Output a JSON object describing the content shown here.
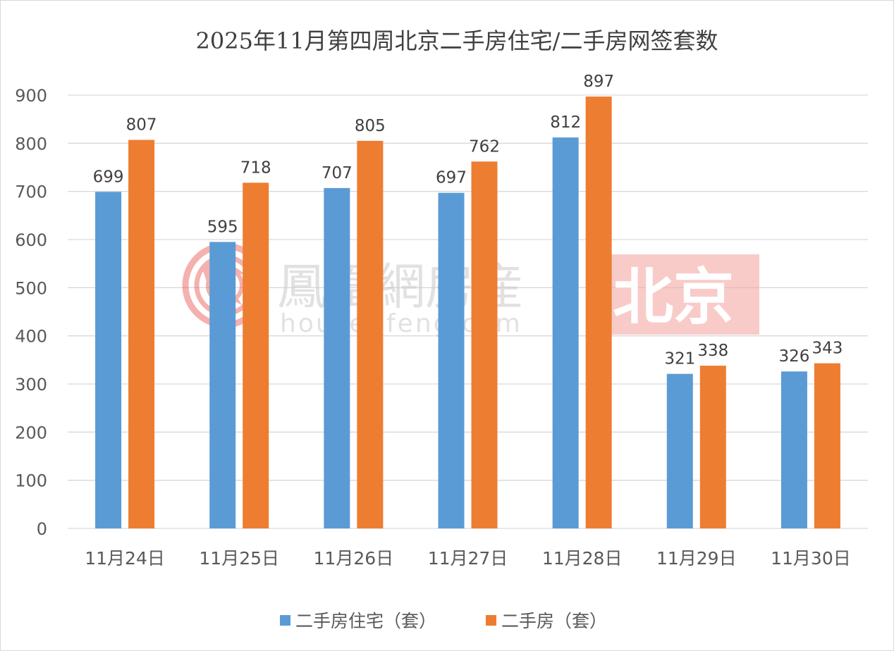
{
  "chart_data": {
    "type": "bar",
    "title": "2025年11月第四周北京二手房住宅/二手房网签套数",
    "categories": [
      "11月24日",
      "11月25日",
      "11月26日",
      "11月27日",
      "11月28日",
      "11月29日",
      "11月30日"
    ],
    "series": [
      {
        "name": "二手房住宅（套）",
        "color": "#5b9bd5",
        "values": [
          699,
          595,
          707,
          697,
          812,
          321,
          326
        ]
      },
      {
        "name": "二手房（套）",
        "color": "#ed7d31",
        "values": [
          807,
          718,
          805,
          762,
          897,
          338,
          343
        ]
      }
    ],
    "ylim": [
      0,
      900
    ],
    "yticks": [
      0,
      100,
      200,
      300,
      400,
      500,
      600,
      700,
      800,
      900
    ],
    "grid": true,
    "legend": "bottom",
    "data_labels": true
  },
  "watermark": {
    "brand": "鳳凰網房産",
    "url": "house.ifeng.com",
    "city": "北京",
    "logo_icon": "phoenix-logo-icon",
    "brand_color": "#e8534b"
  }
}
